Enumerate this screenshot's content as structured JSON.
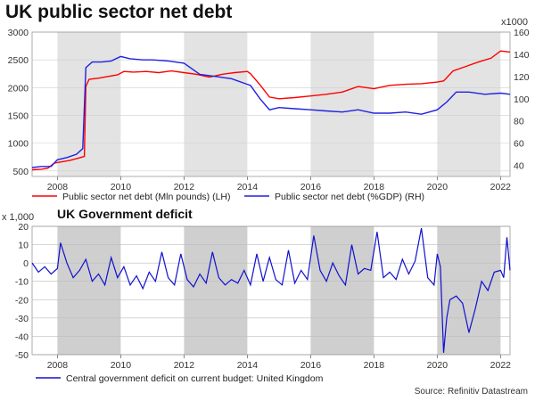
{
  "source": "Source: Refinitiv Datastream",
  "chart_data": [
    {
      "type": "line",
      "title": "UK public sector net debt",
      "x_range": [
        2007.2,
        2022.3
      ],
      "x_ticks": [
        2008,
        2010,
        2012,
        2014,
        2016,
        2018,
        2020,
        2022
      ],
      "left_axis": {
        "unit_label": "",
        "ylim": [
          400,
          3000
        ],
        "ticks": [
          500,
          1000,
          1500,
          2000,
          2500,
          3000
        ]
      },
      "right_axis": {
        "unit_label": "x1000",
        "ylim": [
          30,
          160
        ],
        "ticks": [
          40,
          60,
          80,
          100,
          120,
          140,
          160
        ]
      },
      "shaded_periods": [
        [
          2008,
          2010
        ],
        [
          2012,
          2014
        ],
        [
          2016,
          2018
        ],
        [
          2020,
          2022
        ]
      ],
      "series": [
        {
          "name": "Public sector net debt (Mln pounds) (LH)",
          "axis": "left",
          "color": "#ff0000",
          "x": [
            2007.2,
            2007.5,
            2007.7,
            2007.9,
            2008.1,
            2008.4,
            2008.6,
            2008.85,
            2008.9,
            2009.0,
            2009.3,
            2009.6,
            2009.9,
            2010.1,
            2010.4,
            2010.8,
            2011.2,
            2011.6,
            2012.0,
            2012.4,
            2012.8,
            2013.2,
            2013.6,
            2014.0,
            2014.1,
            2014.4,
            2014.7,
            2015.0,
            2015.5,
            2016.0,
            2016.5,
            2017.0,
            2017.5,
            2018.0,
            2018.5,
            2019.0,
            2019.5,
            2020.0,
            2020.2,
            2020.5,
            2020.9,
            2021.3,
            2021.7,
            2022.0,
            2022.3
          ],
          "y": [
            520,
            530,
            550,
            640,
            660,
            690,
            720,
            760,
            2020,
            2150,
            2170,
            2200,
            2230,
            2290,
            2280,
            2290,
            2270,
            2300,
            2270,
            2240,
            2190,
            2240,
            2270,
            2290,
            2250,
            2050,
            1830,
            1800,
            1820,
            1850,
            1880,
            1920,
            2020,
            1980,
            2040,
            2060,
            2070,
            2100,
            2120,
            2300,
            2380,
            2460,
            2530,
            2660,
            2640
          ]
        },
        {
          "name": "Public sector net debt (%GDP) (RH)",
          "axis": "right",
          "color": "#2020e0",
          "x": [
            2007.2,
            2007.5,
            2007.8,
            2008.0,
            2008.3,
            2008.6,
            2008.8,
            2008.9,
            2009.1,
            2009.4,
            2009.7,
            2010.0,
            2010.3,
            2010.7,
            2011.0,
            2011.5,
            2012.0,
            2012.5,
            2013.0,
            2013.5,
            2014.0,
            2014.1,
            2014.4,
            2014.7,
            2015.0,
            2015.5,
            2016.0,
            2016.5,
            2017.0,
            2017.5,
            2018.0,
            2018.5,
            2019.0,
            2019.5,
            2020.0,
            2020.3,
            2020.6,
            2021.0,
            2021.5,
            2022.0,
            2022.3
          ],
          "y": [
            38,
            39,
            39,
            45,
            47,
            50,
            55,
            128,
            133,
            133,
            134,
            138,
            136,
            135,
            135,
            134,
            132,
            122,
            120,
            118,
            113,
            112,
            100,
            90,
            92,
            91,
            90,
            89,
            88,
            90,
            87,
            87,
            88,
            86,
            90,
            97,
            106,
            106,
            104,
            105,
            104
          ]
        }
      ]
    },
    {
      "type": "line",
      "title": "UK Government deficit",
      "x_range": [
        2007.2,
        2022.3
      ],
      "x_ticks": [
        2008,
        2010,
        2012,
        2014,
        2016,
        2018,
        2020,
        2022
      ],
      "y_axis": {
        "unit_label": "x 1,000",
        "ylim": [
          -50,
          20
        ],
        "ticks": [
          20,
          10,
          0,
          -10,
          -20,
          -30,
          -40,
          -50
        ]
      },
      "shaded_periods": [
        [
          2008,
          2010
        ],
        [
          2012,
          2014
        ],
        [
          2016,
          2018
        ],
        [
          2020,
          2022
        ]
      ],
      "series": [
        {
          "name": "Central government deficit on current budget: United Kingdom",
          "color": "#1010d0",
          "x": [
            2007.2,
            2007.4,
            2007.6,
            2007.8,
            2008.0,
            2008.1,
            2008.3,
            2008.5,
            2008.7,
            2008.9,
            2009.1,
            2009.3,
            2009.5,
            2009.7,
            2009.9,
            2010.1,
            2010.3,
            2010.5,
            2010.7,
            2010.9,
            2011.1,
            2011.3,
            2011.5,
            2011.7,
            2011.9,
            2012.1,
            2012.3,
            2012.5,
            2012.7,
            2012.9,
            2013.1,
            2013.3,
            2013.5,
            2013.7,
            2013.9,
            2014.1,
            2014.3,
            2014.5,
            2014.7,
            2014.9,
            2015.1,
            2015.3,
            2015.5,
            2015.7,
            2015.9,
            2016.1,
            2016.3,
            2016.5,
            2016.7,
            2016.9,
            2017.1,
            2017.3,
            2017.5,
            2017.7,
            2017.9,
            2018.1,
            2018.3,
            2018.5,
            2018.7,
            2018.9,
            2019.1,
            2019.3,
            2019.5,
            2019.7,
            2019.9,
            2020.0,
            2020.1,
            2020.2,
            2020.3,
            2020.4,
            2020.6,
            2020.8,
            2021.0,
            2021.2,
            2021.4,
            2021.6,
            2021.8,
            2022.0,
            2022.1,
            2022.2,
            2022.3
          ],
          "y": [
            0,
            -5,
            -2,
            -6,
            -3,
            11,
            0,
            -8,
            -4,
            2,
            -10,
            -6,
            -12,
            3,
            -8,
            -2,
            -12,
            -7,
            -14,
            -5,
            -10,
            6,
            -8,
            -12,
            5,
            -9,
            -13,
            -6,
            -11,
            6,
            -8,
            -12,
            -9,
            -11,
            -4,
            -12,
            5,
            -10,
            3,
            -9,
            -12,
            7,
            -11,
            -4,
            -9,
            15,
            -4,
            -10,
            0,
            -7,
            -12,
            10,
            -6,
            -3,
            -4,
            17,
            -8,
            -5,
            -9,
            2,
            -6,
            1,
            19,
            -8,
            -12,
            5,
            -2,
            -49,
            -30,
            -20,
            -18,
            -22,
            -38,
            -25,
            -10,
            -15,
            -5,
            -4,
            -8,
            14,
            -4
          ]
        }
      ]
    }
  ]
}
